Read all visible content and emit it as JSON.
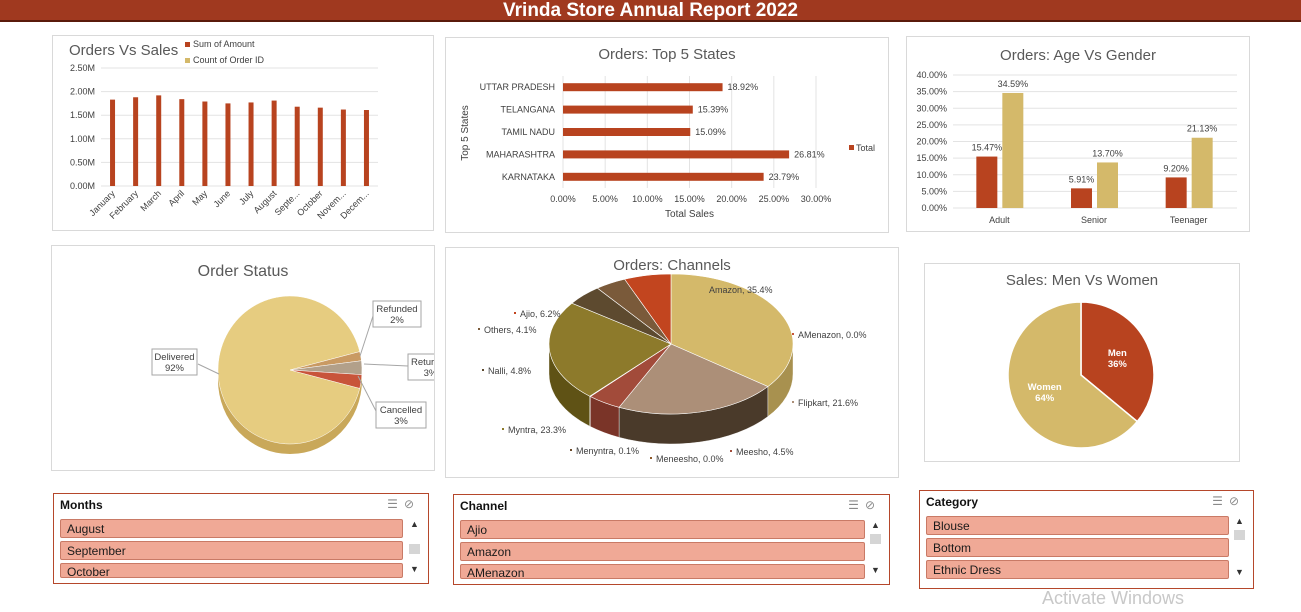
{
  "report_title": "Vrinda Store Annual Report 2022",
  "colors": {
    "primary": "#b8431f",
    "secondary": "#d4b96a",
    "banner": "#a0391f",
    "slicer_item": "#f0a996"
  },
  "charts": {
    "orders_vs_sales": {
      "title": "Orders Vs Sales",
      "legend": [
        "Sum of Amount",
        "Count of Order ID"
      ]
    },
    "top5_states": {
      "title": "Orders: Top 5 States",
      "ylabel": "Top 5 States",
      "xlabel": "Total Sales",
      "legend": "Total"
    },
    "age_gender": {
      "title": "Orders: Age Vs Gender"
    },
    "order_status": {
      "title": "Order Status"
    },
    "channels": {
      "title": "Orders: Channels"
    },
    "men_women": {
      "title": "Sales: Men Vs Women"
    }
  },
  "chart_data": [
    {
      "type": "bar",
      "title": "Orders Vs Sales",
      "categories": [
        "January",
        "February",
        "March",
        "April",
        "May",
        "June",
        "July",
        "August",
        "Septe...",
        "October",
        "Novem...",
        "Decem..."
      ],
      "series": [
        {
          "name": "Sum of Amount",
          "values": [
            1.83,
            1.88,
            1.92,
            1.84,
            1.79,
            1.75,
            1.77,
            1.81,
            1.68,
            1.66,
            1.62,
            1.61
          ]
        },
        {
          "name": "Count of Order ID",
          "values": [
            0,
            0,
            0,
            0,
            0,
            0,
            0,
            0,
            0,
            0,
            0,
            0
          ]
        }
      ],
      "yticks": [
        "0.00M",
        "0.50M",
        "1.00M",
        "1.50M",
        "2.00M",
        "2.50M"
      ],
      "ylim": [
        0,
        2.5
      ]
    },
    {
      "type": "bar",
      "title": "Orders: Top 5 States",
      "categories": [
        "UTTAR PRADESH",
        "TELANGANA",
        "TAMIL NADU",
        "MAHARASHTRA",
        "KARNATAKA"
      ],
      "values": [
        18.92,
        15.39,
        15.09,
        26.81,
        23.79
      ],
      "labels": [
        "18.92%",
        "15.39%",
        "15.09%",
        "26.81%",
        "23.79%"
      ],
      "xticks": [
        "0.00%",
        "5.00%",
        "10.00%",
        "15.00%",
        "20.00%",
        "25.00%",
        "30.00%"
      ],
      "xlim": [
        0,
        30
      ],
      "xlabel": "Total Sales",
      "ylabel": "Top 5 States",
      "series_name": "Total"
    },
    {
      "type": "bar",
      "title": "Orders: Age Vs Gender",
      "categories": [
        "Adult",
        "Senior",
        "Teenager"
      ],
      "series": [
        {
          "values": [
            15.47,
            5.91,
            9.2
          ],
          "labels": [
            "15.47%",
            "5.91%",
            "9.20%"
          ]
        },
        {
          "values": [
            34.59,
            13.7,
            21.13
          ],
          "labels": [
            "34.59%",
            "13.70%",
            "21.13%"
          ]
        }
      ],
      "yticks": [
        "0.00%",
        "5.00%",
        "10.00%",
        "15.00%",
        "20.00%",
        "25.00%",
        "30.00%",
        "35.00%",
        "40.00%"
      ],
      "ylim": [
        0,
        40
      ]
    },
    {
      "type": "pie",
      "title": "Order Status",
      "slices": [
        {
          "label": "Delivered",
          "value": 92,
          "text": "92%"
        },
        {
          "label": "Refunded",
          "value": 2,
          "text": "2%"
        },
        {
          "label": "Returned",
          "value": 3,
          "text": "3%"
        },
        {
          "label": "Cancelled",
          "value": 3,
          "text": "3%"
        }
      ]
    },
    {
      "type": "pie",
      "title": "Orders: Channels",
      "slices": [
        {
          "label": "Amazon, 35.4%",
          "value": 35.4
        },
        {
          "label": "AMenazon, 0.0%",
          "value": 0.0
        },
        {
          "label": "Flipkart, 21.6%",
          "value": 21.6
        },
        {
          "label": "Meesho, 4.5%",
          "value": 4.5
        },
        {
          "label": "Meneesho, 0.0%",
          "value": 0.0
        },
        {
          "label": "Menyntra, 0.1%",
          "value": 0.1
        },
        {
          "label": "Myntra, 23.3%",
          "value": 23.3
        },
        {
          "label": "Nalli, 4.8%",
          "value": 4.8
        },
        {
          "label": "Others, 4.1%",
          "value": 4.1
        },
        {
          "label": "Ajio, 6.2%",
          "value": 6.2
        }
      ]
    },
    {
      "type": "pie",
      "title": "Sales: Men Vs Women",
      "slices": [
        {
          "label": "Men",
          "value": 36,
          "text": "36%"
        },
        {
          "label": "Women",
          "value": 64,
          "text": "64%"
        }
      ]
    }
  ],
  "slicers": {
    "months": {
      "title": "Months",
      "items": [
        "August",
        "September",
        "October"
      ]
    },
    "channel": {
      "title": "Channel",
      "items": [
        "Ajio",
        "Amazon",
        "AMenazon"
      ]
    },
    "category": {
      "title": "Category",
      "items": [
        "Blouse",
        "Bottom",
        "Ethnic Dress"
      ]
    }
  },
  "watermark": "Activate Windows"
}
